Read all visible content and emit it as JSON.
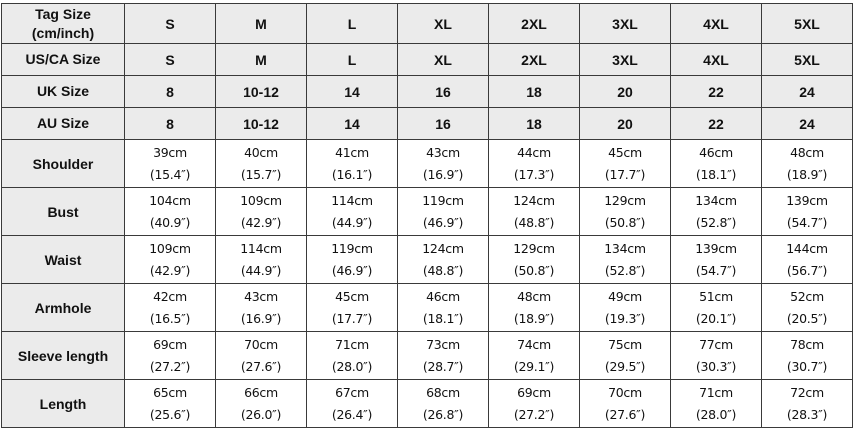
{
  "size_rows": [
    {
      "label": "Tag Size\n(cm/inch)",
      "label_lines": [
        "Tag Size",
        "(cm/inch)"
      ],
      "values": [
        "S",
        "M",
        "L",
        "XL",
        "2XL",
        "3XL",
        "4XL",
        "5XL"
      ]
    },
    {
      "label": "US/CA Size",
      "values": [
        "S",
        "M",
        "L",
        "XL",
        "2XL",
        "3XL",
        "4XL",
        "5XL"
      ]
    },
    {
      "label": "UK Size",
      "values": [
        "8",
        "10-12",
        "14",
        "16",
        "18",
        "20",
        "22",
        "24"
      ]
    },
    {
      "label": "AU Size",
      "values": [
        "8",
        "10-12",
        "14",
        "16",
        "18",
        "20",
        "22",
        "24"
      ]
    }
  ],
  "measure_rows": [
    {
      "label": "Shoulder",
      "cm": [
        "39cm",
        "40cm",
        "41cm",
        "43cm",
        "44cm",
        "45cm",
        "46cm",
        "48cm"
      ],
      "inch": [
        "(15.4″)",
        "(15.7″)",
        "(16.1″)",
        "(16.9″)",
        "(17.3″)",
        "(17.7″)",
        "(18.1″)",
        "(18.9″)"
      ]
    },
    {
      "label": "Bust",
      "cm": [
        "104cm",
        "109cm",
        "114cm",
        "119cm",
        "124cm",
        "129cm",
        "134cm",
        "139cm"
      ],
      "inch": [
        "(40.9″)",
        "(42.9″)",
        "(44.9″)",
        "(46.9″)",
        "(48.8″)",
        "(50.8″)",
        "(52.8″)",
        "(54.7″)"
      ]
    },
    {
      "label": "Waist",
      "cm": [
        "109cm",
        "114cm",
        "119cm",
        "124cm",
        "129cm",
        "134cm",
        "139cm",
        "144cm"
      ],
      "inch": [
        "(42.9″)",
        "(44.9″)",
        "(46.9″)",
        "(48.8″)",
        "(50.8″)",
        "(52.8″)",
        "(54.7″)",
        "(56.7″)"
      ]
    },
    {
      "label": "Armhole",
      "cm": [
        "42cm",
        "43cm",
        "45cm",
        "46cm",
        "48cm",
        "49cm",
        "51cm",
        "52cm"
      ],
      "inch": [
        "(16.5″)",
        "(16.9″)",
        "(17.7″)",
        "(18.1″)",
        "(18.9″)",
        "(19.3″)",
        "(20.1″)",
        "(20.5″)"
      ]
    },
    {
      "label": "Sleeve length",
      "cm": [
        "69cm",
        "70cm",
        "71cm",
        "73cm",
        "74cm",
        "75cm",
        "77cm",
        "78cm"
      ],
      "inch": [
        "(27.2″)",
        "(27.6″)",
        "(28.0″)",
        "(28.7″)",
        "(29.1″)",
        "(29.5″)",
        "(30.3″)",
        "(30.7″)"
      ]
    },
    {
      "label": "Length",
      "cm": [
        "65cm",
        "66cm",
        "67cm",
        "68cm",
        "69cm",
        "70cm",
        "71cm",
        "72cm"
      ],
      "inch": [
        "(25.6″)",
        "(26.0″)",
        "(26.4″)",
        "(26.8″)",
        "(27.2″)",
        "(27.6″)",
        "(28.0″)",
        "(28.3″)"
      ]
    }
  ],
  "colors": {
    "header_bg": "#ebebeb",
    "border": "#3a3a3a",
    "cell_bg": "#ffffff"
  }
}
